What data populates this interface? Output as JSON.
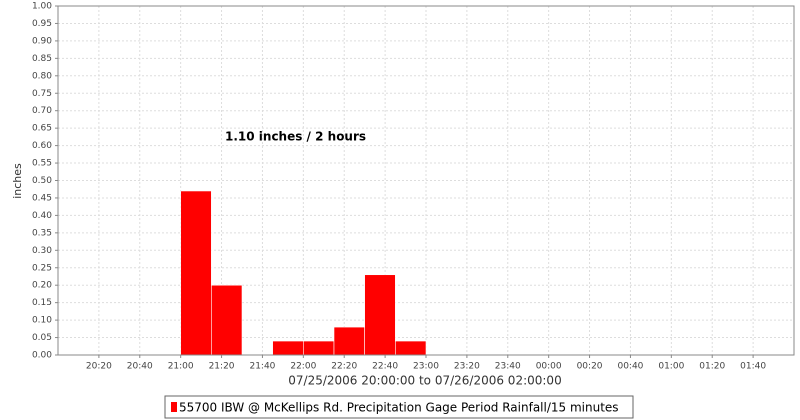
{
  "chart_data": {
    "type": "histogram",
    "annotation": "1.10 inches / 2 hours",
    "xlabel": "07/25/2006 20:00:00 to 07/26/2006 02:00:00",
    "ylabel": "inches",
    "bins": [
      1260,
      1275,
      1290,
      1305,
      1320,
      1335,
      1350,
      1365,
      1380
    ],
    "series": [
      {
        "name": "55700 IBW @ McKellips Rd. Precipitation Gage Period Rainfall/15 minutes",
        "color": "#ff0000",
        "values": [
          0.47,
          0.2,
          0,
          0.04,
          0.04,
          0.08,
          0.23,
          0.04
        ]
      }
    ],
    "xlim": [
      1200,
      1560
    ],
    "xticks": [
      {
        "value": 1220,
        "label": "20:20"
      },
      {
        "value": 1240,
        "label": "20:40"
      },
      {
        "value": 1260,
        "label": "21:00"
      },
      {
        "value": 1280,
        "label": "21:20"
      },
      {
        "value": 1300,
        "label": "21:40"
      },
      {
        "value": 1320,
        "label": "22:00"
      },
      {
        "value": 1340,
        "label": "22:20"
      },
      {
        "value": 1360,
        "label": "22:40"
      },
      {
        "value": 1380,
        "label": "23:00"
      },
      {
        "value": 1400,
        "label": "23:20"
      },
      {
        "value": 1420,
        "label": "23:40"
      },
      {
        "value": 1440,
        "label": "00:00"
      },
      {
        "value": 1460,
        "label": "00:20"
      },
      {
        "value": 1480,
        "label": "00:40"
      },
      {
        "value": 1500,
        "label": "01:00"
      },
      {
        "value": 1520,
        "label": "01:20"
      },
      {
        "value": 1540,
        "label": "01:40"
      }
    ],
    "ylim": [
      0,
      1
    ],
    "yticks": [
      {
        "value": 0,
        "label": "0.00"
      },
      {
        "value": 0.05,
        "label": "0.05"
      },
      {
        "value": 0.1,
        "label": "0.10"
      },
      {
        "value": 0.15,
        "label": "0.15"
      },
      {
        "value": 0.2,
        "label": "0.20"
      },
      {
        "value": 0.25,
        "label": "0.25"
      },
      {
        "value": 0.3,
        "label": "0.30"
      },
      {
        "value": 0.35,
        "label": "0.35"
      },
      {
        "value": 0.4,
        "label": "0.40"
      },
      {
        "value": 0.45,
        "label": "0.45"
      },
      {
        "value": 0.5,
        "label": "0.50"
      },
      {
        "value": 0.55,
        "label": "0.55"
      },
      {
        "value": 0.6,
        "label": "0.60"
      },
      {
        "value": 0.65,
        "label": "0.65"
      },
      {
        "value": 0.7,
        "label": "0.70"
      },
      {
        "value": 0.75,
        "label": "0.75"
      },
      {
        "value": 0.8,
        "label": "0.80"
      },
      {
        "value": 0.85,
        "label": "0.85"
      },
      {
        "value": 0.9,
        "label": "0.90"
      },
      {
        "value": 0.95,
        "label": "0.95"
      },
      {
        "value": 1,
        "label": "1.00"
      }
    ],
    "grid": true
  }
}
